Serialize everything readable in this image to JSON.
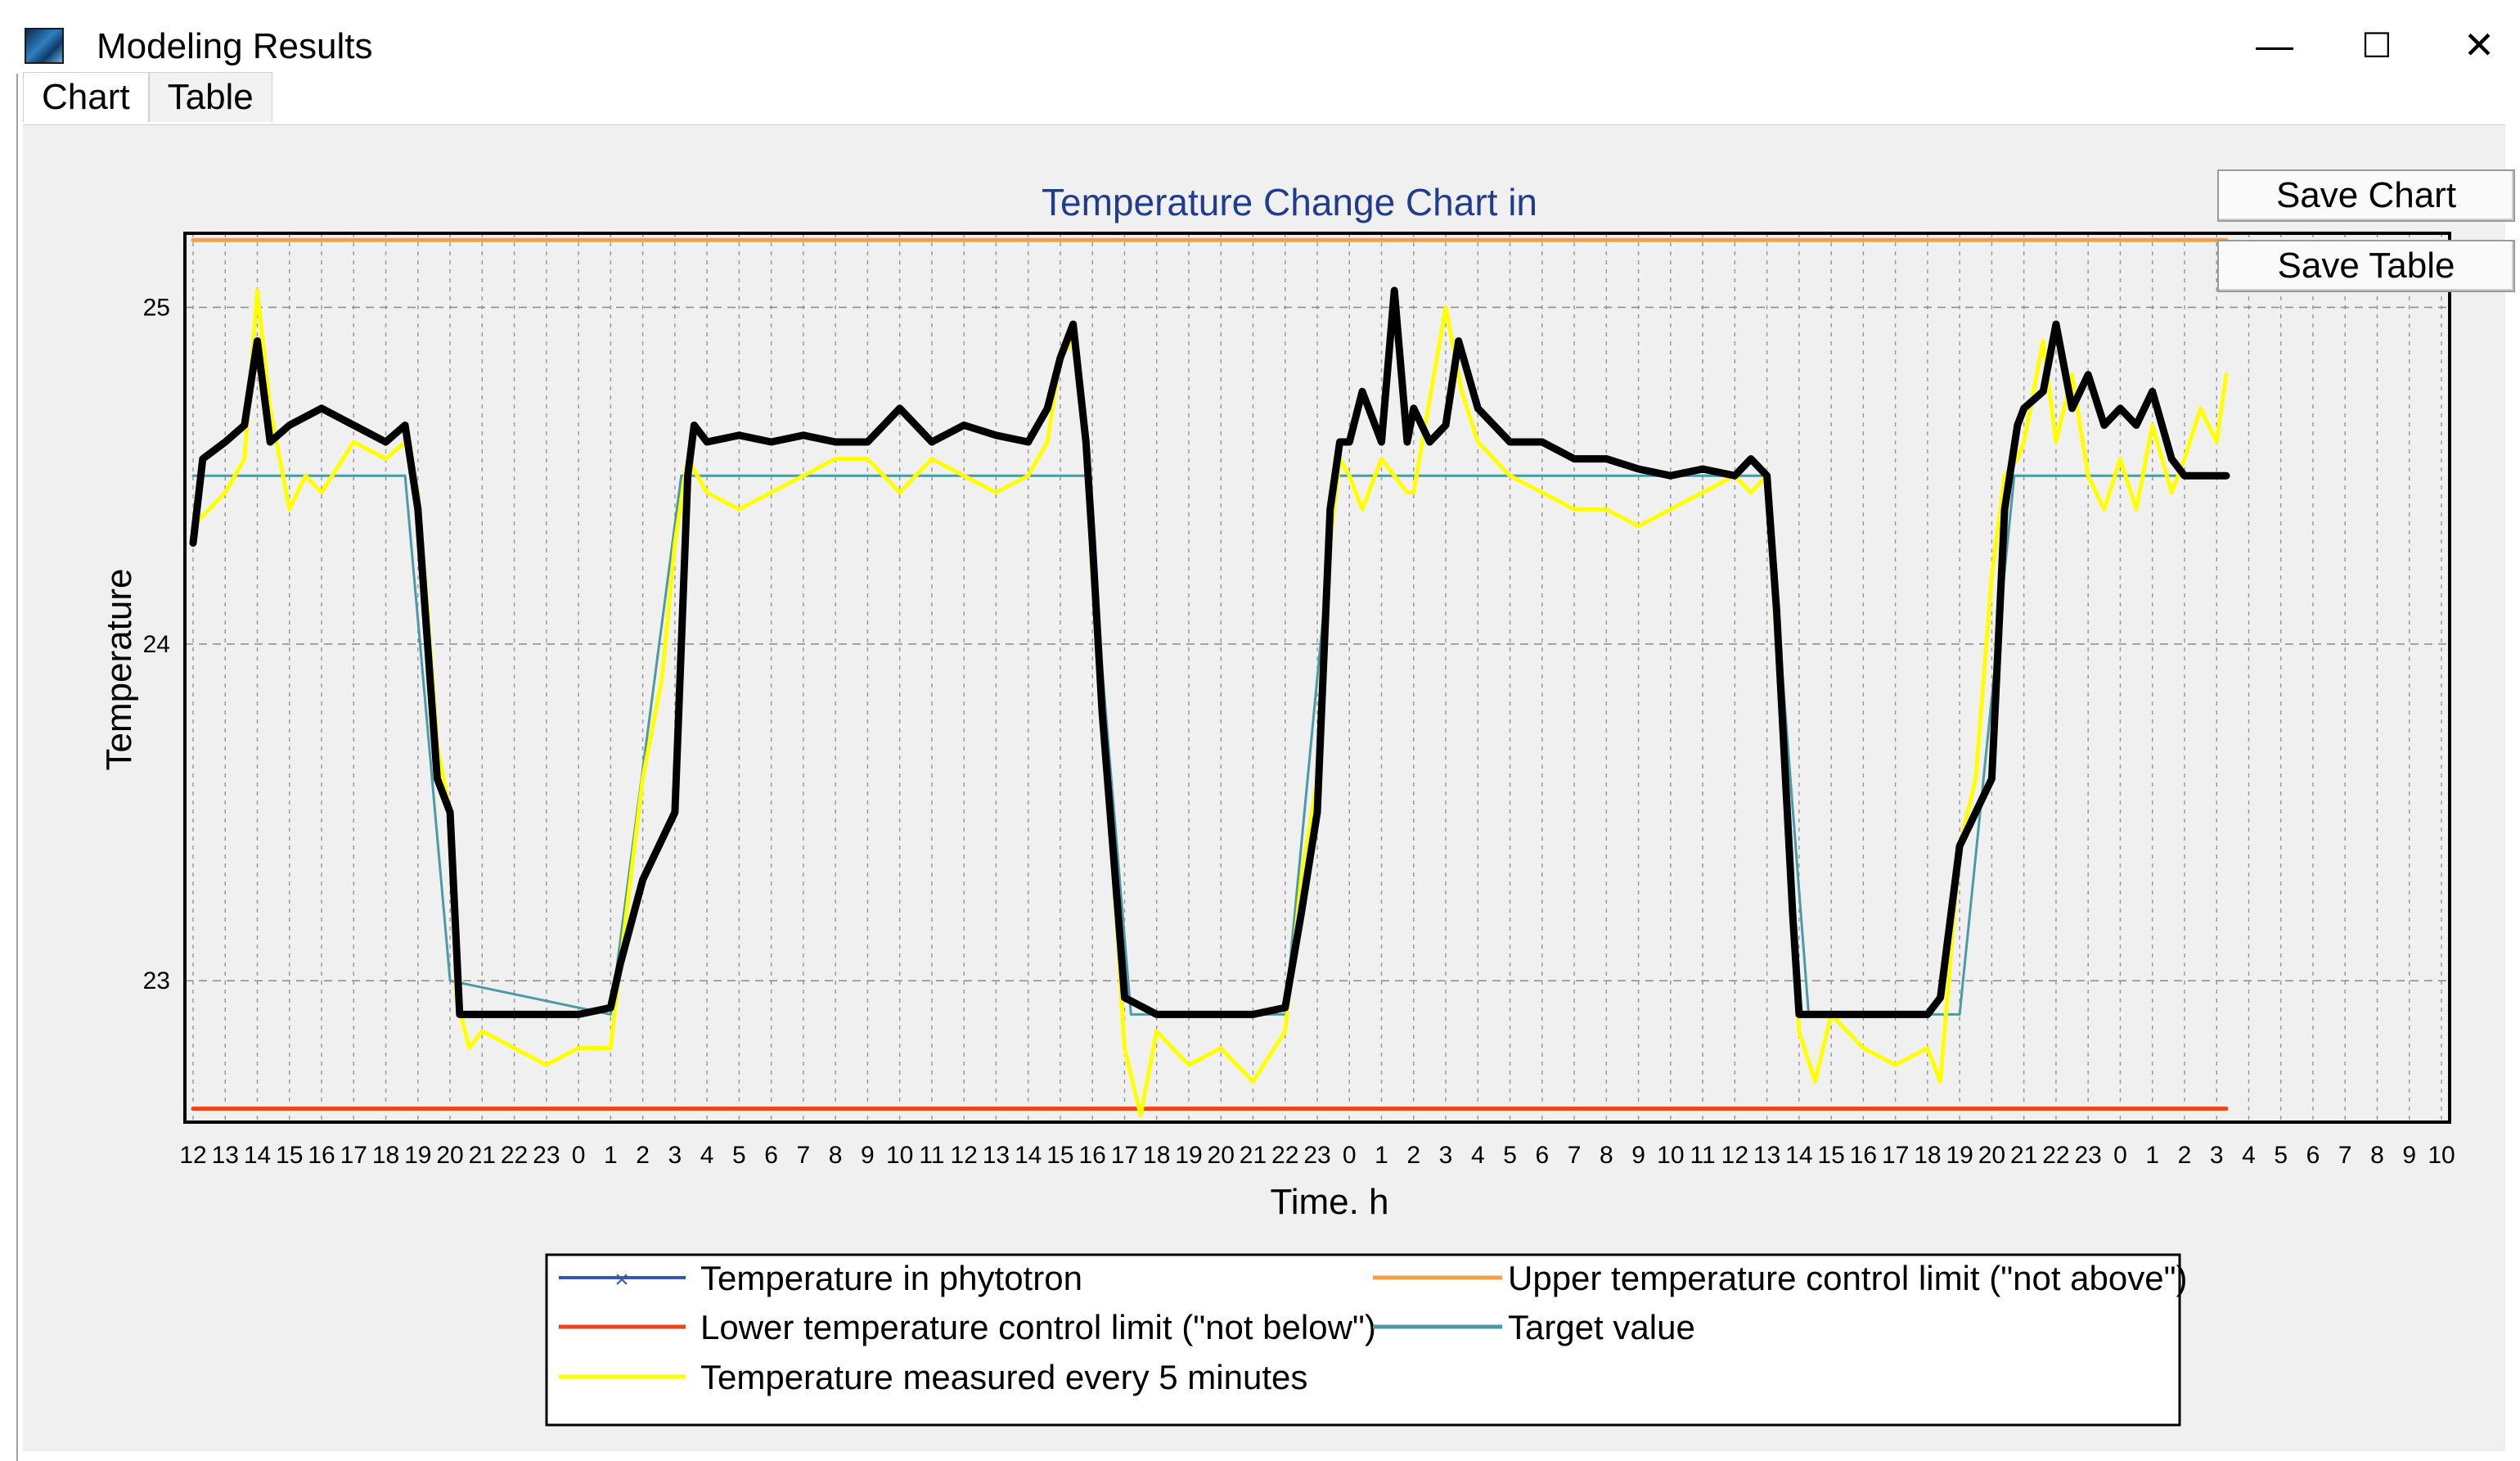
{
  "window": {
    "title": "Modeling Results",
    "controls": {
      "minimize": "—",
      "maximize": "☐",
      "close": "✕"
    }
  },
  "tabs": [
    {
      "label": "Chart",
      "active": true
    },
    {
      "label": "Table",
      "active": false
    }
  ],
  "buttons": {
    "save_chart": "Save Chart",
    "save_table": "Save Table"
  },
  "colors": {
    "phytotron": "#3558a8",
    "upper_limit": "#f5a044",
    "lower_limit": "#f0441a",
    "target": "#4a9aa8",
    "measured": "#ffff00",
    "plot_bg": "#f0f0f0"
  },
  "chart_data": {
    "type": "line",
    "title": "Temperature Change Chart in",
    "xlabel": "Time. h",
    "ylabel": "Temperature",
    "ylim": [
      22.58,
      25.22
    ],
    "yticks": [
      23,
      24,
      25
    ],
    "x_tick_labels": [
      "12",
      "13",
      "14",
      "15",
      "16",
      "17",
      "18",
      "19",
      "20",
      "21",
      "22",
      "23",
      "0",
      "1",
      "2",
      "3",
      "4",
      "5",
      "6",
      "7",
      "8",
      "9",
      "10",
      "11",
      "12",
      "13",
      "14",
      "15",
      "16",
      "17",
      "18",
      "19",
      "20",
      "21",
      "22",
      "23",
      "0",
      "1",
      "2",
      "3",
      "4",
      "5",
      "6",
      "7",
      "8",
      "9",
      "10",
      "11",
      "12",
      "13",
      "14",
      "15",
      "16",
      "17",
      "18",
      "19",
      "20",
      "21",
      "22",
      "23",
      "0",
      "1",
      "2",
      "3",
      "4",
      "5",
      "6",
      "7",
      "8",
      "9",
      "10"
    ],
    "grid": true,
    "legend_placement": "bottom-center",
    "series": [
      {
        "name": "Temperature in phytotron",
        "color": "#000000",
        "marker": "x",
        "points": [
          [
            0,
            24.3
          ],
          [
            0.3,
            24.55
          ],
          [
            1,
            24.6
          ],
          [
            1.6,
            24.65
          ],
          [
            2,
            24.9
          ],
          [
            2.4,
            24.6
          ],
          [
            3,
            24.65
          ],
          [
            4,
            24.7
          ],
          [
            5,
            24.65
          ],
          [
            6,
            24.6
          ],
          [
            6.6,
            24.65
          ],
          [
            7,
            24.4
          ],
          [
            7.3,
            24
          ],
          [
            7.6,
            23.6
          ],
          [
            8,
            23.5
          ],
          [
            8.3,
            22.9
          ],
          [
            9,
            22.9
          ],
          [
            10,
            22.9
          ],
          [
            11,
            22.9
          ],
          [
            12,
            22.9
          ],
          [
            13,
            22.92
          ],
          [
            13.3,
            23.05
          ],
          [
            14,
            23.3
          ],
          [
            15,
            23.5
          ],
          [
            15.4,
            24.5
          ],
          [
            15.6,
            24.65
          ],
          [
            16,
            24.6
          ],
          [
            17,
            24.62
          ],
          [
            18,
            24.6
          ],
          [
            19,
            24.62
          ],
          [
            20,
            24.6
          ],
          [
            21,
            24.6
          ],
          [
            22,
            24.7
          ],
          [
            23,
            24.6
          ],
          [
            24,
            24.65
          ],
          [
            25,
            24.62
          ],
          [
            26,
            24.6
          ],
          [
            26.6,
            24.7
          ],
          [
            27,
            24.85
          ],
          [
            27.4,
            24.95
          ],
          [
            27.8,
            24.6
          ],
          [
            28,
            24.3
          ],
          [
            28.3,
            23.8
          ],
          [
            28.8,
            23.2
          ],
          [
            29,
            22.95
          ],
          [
            30,
            22.9
          ],
          [
            31,
            22.9
          ],
          [
            32,
            22.9
          ],
          [
            33,
            22.9
          ],
          [
            34,
            22.92
          ],
          [
            34.5,
            23.2
          ],
          [
            35,
            23.5
          ],
          [
            35.4,
            24.4
          ],
          [
            35.7,
            24.6
          ],
          [
            36,
            24.6
          ],
          [
            36.4,
            24.75
          ],
          [
            37,
            24.6
          ],
          [
            37.4,
            25.05
          ],
          [
            37.8,
            24.6
          ],
          [
            38,
            24.7
          ],
          [
            38.5,
            24.6
          ],
          [
            39,
            24.65
          ],
          [
            39.4,
            24.9
          ],
          [
            40,
            24.7
          ],
          [
            41,
            24.6
          ],
          [
            42,
            24.6
          ],
          [
            43,
            24.55
          ],
          [
            44,
            24.55
          ],
          [
            45,
            24.52
          ],
          [
            46,
            24.5
          ],
          [
            47,
            24.52
          ],
          [
            48,
            24.5
          ],
          [
            48.5,
            24.55
          ],
          [
            49,
            24.5
          ],
          [
            49.3,
            24.1
          ],
          [
            49.8,
            23.2
          ],
          [
            50,
            22.9
          ],
          [
            51,
            22.9
          ],
          [
            52,
            22.9
          ],
          [
            53,
            22.9
          ],
          [
            54,
            22.9
          ],
          [
            54.4,
            22.95
          ],
          [
            55,
            23.4
          ],
          [
            56,
            23.6
          ],
          [
            56.4,
            24.4
          ],
          [
            56.8,
            24.65
          ],
          [
            57,
            24.7
          ],
          [
            57.6,
            24.75
          ],
          [
            58,
            24.95
          ],
          [
            58.5,
            24.7
          ],
          [
            59,
            24.8
          ],
          [
            59.5,
            24.65
          ],
          [
            60,
            24.7
          ],
          [
            60.5,
            24.65
          ],
          [
            61,
            24.75
          ],
          [
            61.6,
            24.55
          ],
          [
            62,
            24.5
          ],
          [
            62.5,
            24.5
          ],
          [
            63,
            24.5
          ],
          [
            63.3,
            24.5
          ]
        ]
      },
      {
        "name": "Temperature measured every 5 minutes",
        "color": "#ffff00",
        "points": [
          [
            0,
            24.35
          ],
          [
            0.5,
            24.4
          ],
          [
            1,
            24.45
          ],
          [
            1.6,
            24.55
          ],
          [
            2,
            25.05
          ],
          [
            2.4,
            24.7
          ],
          [
            3,
            24.4
          ],
          [
            3.5,
            24.5
          ],
          [
            4,
            24.45
          ],
          [
            5,
            24.6
          ],
          [
            6,
            24.55
          ],
          [
            6.6,
            24.6
          ],
          [
            7,
            24.45
          ],
          [
            7.3,
            24.1
          ],
          [
            7.6,
            23.7
          ],
          [
            8,
            23.5
          ],
          [
            8.2,
            22.95
          ],
          [
            8.6,
            22.8
          ],
          [
            9,
            22.85
          ],
          [
            10,
            22.8
          ],
          [
            11,
            22.75
          ],
          [
            12,
            22.8
          ],
          [
            13,
            22.8
          ],
          [
            13.3,
            23.05
          ],
          [
            14,
            23.6
          ],
          [
            14.6,
            23.9
          ],
          [
            15,
            24.3
          ],
          [
            15.4,
            24.55
          ],
          [
            16,
            24.45
          ],
          [
            17,
            24.4
          ],
          [
            18,
            24.45
          ],
          [
            19,
            24.5
          ],
          [
            20,
            24.55
          ],
          [
            21,
            24.55
          ],
          [
            22,
            24.45
          ],
          [
            23,
            24.55
          ],
          [
            24,
            24.5
          ],
          [
            25,
            24.45
          ],
          [
            26,
            24.5
          ],
          [
            26.6,
            24.6
          ],
          [
            27,
            24.85
          ],
          [
            27.4,
            24.9
          ],
          [
            27.8,
            24.55
          ],
          [
            28,
            24.2
          ],
          [
            28.3,
            23.8
          ],
          [
            28.6,
            23.4
          ],
          [
            29,
            22.8
          ],
          [
            29.5,
            22.6
          ],
          [
            30,
            22.85
          ],
          [
            31,
            22.75
          ],
          [
            32,
            22.8
          ],
          [
            33,
            22.7
          ],
          [
            34,
            22.85
          ],
          [
            34.5,
            23.3
          ],
          [
            35,
            23.6
          ],
          [
            35.4,
            24.3
          ],
          [
            35.7,
            24.55
          ],
          [
            36,
            24.5
          ],
          [
            36.4,
            24.4
          ],
          [
            37,
            24.55
          ],
          [
            37.4,
            24.5
          ],
          [
            37.8,
            24.45
          ],
          [
            38,
            24.45
          ],
          [
            39,
            25.0
          ],
          [
            39.5,
            24.75
          ],
          [
            40,
            24.6
          ],
          [
            41,
            24.5
          ],
          [
            42,
            24.45
          ],
          [
            43,
            24.4
          ],
          [
            44,
            24.4
          ],
          [
            45,
            24.35
          ],
          [
            46,
            24.4
          ],
          [
            47,
            24.45
          ],
          [
            48,
            24.5
          ],
          [
            48.5,
            24.45
          ],
          [
            49,
            24.5
          ],
          [
            49.3,
            24.0
          ],
          [
            49.8,
            23.2
          ],
          [
            50,
            22.85
          ],
          [
            50.5,
            22.7
          ],
          [
            51,
            22.9
          ],
          [
            52,
            22.8
          ],
          [
            53,
            22.75
          ],
          [
            54,
            22.8
          ],
          [
            54.4,
            22.7
          ],
          [
            55,
            23.4
          ],
          [
            55.5,
            23.6
          ],
          [
            56,
            24.2
          ],
          [
            56.4,
            24.5
          ],
          [
            56.8,
            24.55
          ],
          [
            57,
            24.6
          ],
          [
            57.6,
            24.9
          ],
          [
            58,
            24.6
          ],
          [
            58.5,
            24.8
          ],
          [
            59,
            24.5
          ],
          [
            59.5,
            24.4
          ],
          [
            60,
            24.55
          ],
          [
            60.5,
            24.4
          ],
          [
            61,
            24.65
          ],
          [
            61.6,
            24.45
          ],
          [
            62,
            24.55
          ],
          [
            62.5,
            24.7
          ],
          [
            63,
            24.6
          ],
          [
            63.3,
            24.8
          ]
        ]
      },
      {
        "name": "Target value",
        "color": "#4a9aa8",
        "points": [
          [
            0,
            24.5
          ],
          [
            6.6,
            24.5
          ],
          [
            8,
            23.0
          ],
          [
            13,
            22.9
          ],
          [
            15.2,
            24.5
          ],
          [
            27.8,
            24.5
          ],
          [
            29.2,
            22.9
          ],
          [
            34,
            22.9
          ],
          [
            35.6,
            24.5
          ],
          [
            49,
            24.5
          ],
          [
            50.3,
            22.9
          ],
          [
            55,
            22.9
          ],
          [
            56.7,
            24.5
          ],
          [
            63.3,
            24.5
          ]
        ]
      },
      {
        "name": "Upper temperature control limit (\"not above\")",
        "color": "#f5a044",
        "points": [
          [
            0,
            25.2
          ],
          [
            63.3,
            25.2
          ]
        ]
      },
      {
        "name": "Lower temperature control limit (\"not below\")",
        "color": "#f0441a",
        "points": [
          [
            0,
            22.62
          ],
          [
            63.3,
            22.62
          ]
        ]
      }
    ],
    "legend": {
      "left": [
        {
          "label": "Temperature in phytotron",
          "color": "#3558a8",
          "marker": "x"
        },
        {
          "label": "Lower temperature control limit (\"not below\")",
          "color": "#f0441a"
        },
        {
          "label": "Temperature measured every 5 minutes",
          "color": "#ffff00"
        }
      ],
      "right": [
        {
          "label": "Upper temperature control limit (\"not above\")",
          "color": "#f5a044"
        },
        {
          "label": "Target value",
          "color": "#4a9aa8"
        }
      ]
    }
  }
}
